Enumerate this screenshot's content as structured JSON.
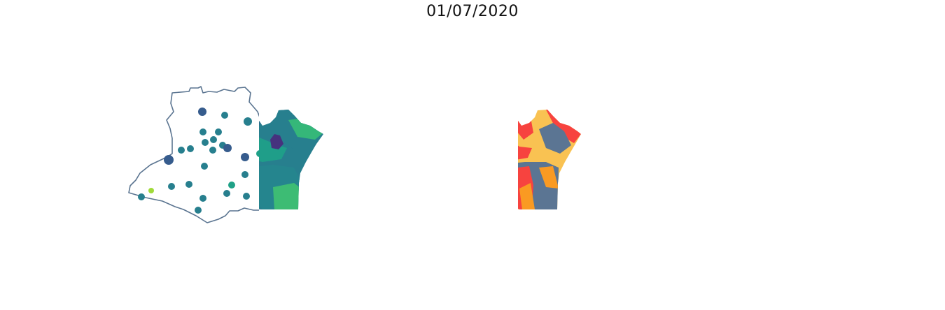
{
  "title": "01/07/2020",
  "colors": {
    "outline": "#5a7490",
    "viridis": [
      "#440154",
      "#46327e",
      "#365c8d",
      "#277f8e",
      "#1fa187",
      "#4ac16d",
      "#a0da39",
      "#fde725"
    ],
    "risk": {
      "low": "#5b7593",
      "moderate": "#f9c252",
      "high": "#fa9a22",
      "very_high": "#f7433f"
    }
  },
  "panels": [
    {
      "name": "municipality-points-map",
      "style": "points"
    },
    {
      "name": "municipality-choropleth-viridis",
      "style": "choropleth"
    },
    {
      "name": "municipality-risk-choropleth",
      "style": "categorical"
    }
  ]
}
